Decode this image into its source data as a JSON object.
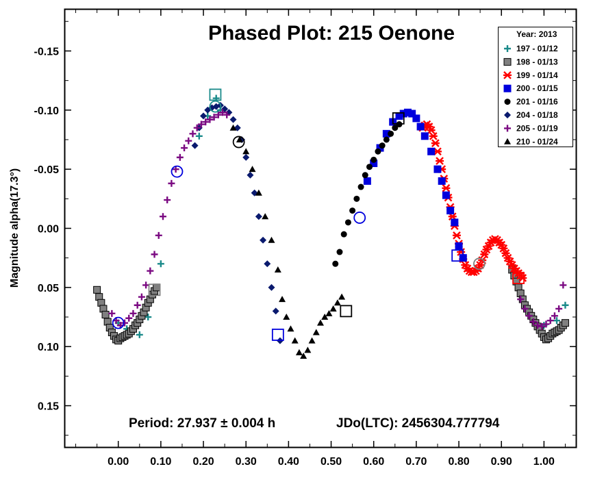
{
  "chart_data": {
    "type": "scatter",
    "title": "Phased Plot: 215 Oenone",
    "ylabel": "Magnitude alpha(17.3°)",
    "xlabel": "",
    "xlim": [
      -0.125,
      1.075
    ],
    "ylim": [
      -0.185,
      0.185
    ],
    "y_inverted": true,
    "grid": false,
    "legend_placement": "top-right",
    "legend_title": "Year: 2013",
    "period_text": "Period: 27.937 ± 0.004 h",
    "epoch_text": "JDo(LTC): 2456304.777794",
    "x_ticks": [
      0.0,
      0.1,
      0.2,
      0.3,
      0.4,
      0.5,
      0.6,
      0.7,
      0.8,
      0.9,
      1.0
    ],
    "x_tick_labels": [
      "0.00",
      "0.10",
      "0.20",
      "0.30",
      "0.40",
      "0.50",
      "0.60",
      "0.70",
      "0.80",
      "0.90",
      "1.00"
    ],
    "y_ticks": [
      -0.15,
      -0.1,
      -0.05,
      0.0,
      0.05,
      0.1,
      0.15
    ],
    "y_tick_labels": [
      "-0.15",
      "-0.10",
      "-0.05",
      "0.00",
      "0.05",
      "0.10",
      "0.15"
    ],
    "series": [
      {
        "name": "197 - 01/12",
        "color": "#1a8a8a",
        "marker": "plus",
        "x": [
          0.0,
          0.02,
          0.05,
          0.07,
          0.09,
          0.1,
          0.19,
          0.21,
          0.23,
          0.24,
          0.97,
          1.0,
          1.03,
          1.05
        ],
        "y": [
          0.08,
          0.085,
          0.09,
          0.075,
          0.05,
          0.03,
          -0.078,
          -0.095,
          -0.11,
          -0.1,
          0.075,
          0.082,
          0.078,
          0.065
        ]
      },
      {
        "name": "198 - 01/13",
        "color": "#808080",
        "marker": "square",
        "x": [
          -0.05,
          -0.045,
          -0.04,
          -0.035,
          -0.03,
          -0.025,
          -0.02,
          -0.015,
          -0.01,
          -0.005,
          0.0,
          0.005,
          0.01,
          0.015,
          0.02,
          0.025,
          0.03,
          0.035,
          0.04,
          0.045,
          0.05,
          0.055,
          0.06,
          0.065,
          0.07,
          0.075,
          0.08,
          0.085,
          0.09,
          0.925,
          0.93,
          0.935,
          0.94,
          0.945,
          0.95,
          0.955,
          0.96,
          0.965,
          0.97,
          0.975,
          0.98,
          0.985,
          0.99,
          0.995,
          1.0,
          1.005,
          1.01,
          1.015,
          1.02,
          1.025,
          1.03,
          1.035,
          1.04,
          1.045,
          1.05
        ],
        "y": [
          0.052,
          0.058,
          0.063,
          0.068,
          0.073,
          0.079,
          0.084,
          0.088,
          0.091,
          0.094,
          0.095,
          0.093,
          0.092,
          0.091,
          0.09,
          0.089,
          0.087,
          0.085,
          0.082,
          0.08,
          0.077,
          0.074,
          0.071,
          0.067,
          0.063,
          0.06,
          0.056,
          0.053,
          0.05,
          0.035,
          0.04,
          0.045,
          0.05,
          0.055,
          0.06,
          0.065,
          0.068,
          0.071,
          0.074,
          0.077,
          0.08,
          0.083,
          0.086,
          0.089,
          0.092,
          0.094,
          0.093,
          0.091,
          0.089,
          0.088,
          0.087,
          0.086,
          0.084,
          0.082,
          0.08
        ]
      },
      {
        "name": "199 - 01/14",
        "color": "#ff0000",
        "marker": "cross",
        "x": [
          0.715,
          0.72,
          0.725,
          0.73,
          0.735,
          0.74,
          0.745,
          0.75,
          0.755,
          0.76,
          0.765,
          0.77,
          0.775,
          0.78,
          0.785,
          0.79,
          0.795,
          0.8,
          0.805,
          0.81,
          0.815,
          0.82,
          0.825,
          0.83,
          0.835,
          0.84,
          0.845,
          0.85,
          0.855,
          0.86,
          0.865,
          0.87,
          0.875,
          0.88,
          0.885,
          0.89,
          0.895,
          0.9,
          0.905,
          0.91,
          0.915,
          0.92,
          0.925,
          0.93,
          0.935,
          0.94,
          0.945,
          0.95
        ],
        "y": [
          -0.085,
          -0.087,
          -0.088,
          -0.086,
          -0.083,
          -0.078,
          -0.072,
          -0.065,
          -0.057,
          -0.05,
          -0.042,
          -0.034,
          -0.026,
          -0.018,
          -0.01,
          -0.002,
          0.006,
          0.013,
          0.02,
          0.026,
          0.031,
          0.034,
          0.036,
          0.037,
          0.037,
          0.036,
          0.034,
          0.031,
          0.027,
          0.022,
          0.018,
          0.015,
          0.012,
          0.01,
          0.009,
          0.01,
          0.012,
          0.014,
          0.017,
          0.021,
          0.025,
          0.028,
          0.031,
          0.034,
          0.036,
          0.038,
          0.04,
          0.042
        ]
      },
      {
        "name": "200 - 01/15",
        "color": "#0000dd",
        "marker": "square",
        "x": [
          0.585,
          0.6,
          0.615,
          0.63,
          0.645,
          0.66,
          0.67,
          0.68,
          0.69,
          0.7,
          0.71,
          0.72,
          0.735,
          0.75,
          0.76,
          0.77,
          0.78,
          0.79,
          0.8,
          0.81
        ],
        "y": [
          -0.04,
          -0.055,
          -0.068,
          -0.08,
          -0.09,
          -0.095,
          -0.097,
          -0.098,
          -0.097,
          -0.093,
          -0.086,
          -0.078,
          -0.065,
          -0.05,
          -0.04,
          -0.028,
          -0.015,
          -0.005,
          0.015,
          0.025
        ]
      },
      {
        "name": "201 - 01/16",
        "color": "#000000",
        "marker": "circle",
        "x": [
          0.51,
          0.52,
          0.53,
          0.54,
          0.55,
          0.56,
          0.57,
          0.58,
          0.59,
          0.6,
          0.61,
          0.62,
          0.63,
          0.64,
          0.65,
          0.66
        ],
        "y": [
          0.03,
          0.02,
          0.005,
          -0.005,
          -0.015,
          -0.025,
          -0.035,
          -0.045,
          -0.052,
          -0.058,
          -0.065,
          -0.07,
          -0.075,
          -0.08,
          -0.085,
          -0.088
        ]
      },
      {
        "name": "204 - 01/18",
        "color": "#0a1a6e",
        "marker": "diamond",
        "x": [
          0.18,
          0.19,
          0.2,
          0.21,
          0.22,
          0.23,
          0.24,
          0.25,
          0.26,
          0.27,
          0.28,
          0.29,
          0.3,
          0.31,
          0.32,
          0.33,
          0.34,
          0.35,
          0.36,
          0.37,
          0.38
        ],
        "y": [
          -0.07,
          -0.085,
          -0.095,
          -0.1,
          -0.102,
          -0.103,
          -0.104,
          -0.101,
          -0.098,
          -0.092,
          -0.085,
          -0.075,
          -0.06,
          -0.045,
          -0.03,
          -0.01,
          0.01,
          0.03,
          0.05,
          0.07,
          0.095
        ]
      },
      {
        "name": "205 - 01/19",
        "color": "#7b0a82",
        "marker": "plus",
        "x": [
          -0.015,
          -0.005,
          0.005,
          0.015,
          0.025,
          0.035,
          0.045,
          0.055,
          0.065,
          0.075,
          0.085,
          0.095,
          0.105,
          0.115,
          0.125,
          0.135,
          0.145,
          0.155,
          0.165,
          0.175,
          0.185,
          0.195,
          0.205,
          0.215,
          0.225,
          0.235,
          0.245,
          0.255,
          0.945,
          0.955,
          0.965,
          0.975,
          0.985,
          0.995,
          1.005,
          1.015,
          1.025,
          1.035,
          1.045
        ],
        "y": [
          0.072,
          0.078,
          0.082,
          0.08,
          0.076,
          0.072,
          0.065,
          0.058,
          0.048,
          0.036,
          0.022,
          0.006,
          -0.01,
          -0.024,
          -0.038,
          -0.05,
          -0.06,
          -0.068,
          -0.074,
          -0.08,
          -0.085,
          -0.088,
          -0.09,
          -0.092,
          -0.094,
          -0.096,
          -0.098,
          -0.096,
          0.06,
          0.068,
          0.074,
          0.079,
          0.082,
          0.083,
          0.081,
          0.078,
          0.074,
          0.068,
          0.048
        ]
      },
      {
        "name": "210 - 01/24",
        "color": "#000000",
        "marker": "triangle",
        "x": [
          0.27,
          0.285,
          0.3,
          0.315,
          0.33,
          0.345,
          0.36,
          0.375,
          0.385,
          0.395,
          0.405,
          0.415,
          0.425,
          0.435,
          0.445,
          0.455,
          0.465,
          0.475,
          0.485,
          0.495,
          0.505,
          0.515,
          0.525
        ],
        "y": [
          -0.085,
          -0.075,
          -0.065,
          -0.05,
          -0.03,
          -0.01,
          0.01,
          0.035,
          0.06,
          0.075,
          0.085,
          0.095,
          0.105,
          0.108,
          0.103,
          0.095,
          0.088,
          0.08,
          0.075,
          0.072,
          0.068,
          0.063,
          0.058
        ]
      }
    ],
    "open_markers": [
      {
        "shape": "square",
        "color": "#1a8a8a",
        "x": 0.228,
        "y": -0.113
      },
      {
        "shape": "circle",
        "color": "#1a8a8a",
        "x": 0.228,
        "y": -0.103
      },
      {
        "shape": "square",
        "color": "#808080",
        "x": 0.085,
        "y": 0.052
      },
      {
        "shape": "circle",
        "color": "#0000dd",
        "x": 0.138,
        "y": -0.048
      },
      {
        "shape": "circle",
        "color": "#0000dd",
        "x": 0.0,
        "y": 0.08
      },
      {
        "shape": "circle",
        "color": "#000000",
        "x": 0.283,
        "y": -0.073
      },
      {
        "shape": "square",
        "color": "#0000dd",
        "x": 0.375,
        "y": 0.09
      },
      {
        "shape": "square",
        "color": "#000000",
        "x": 0.535,
        "y": 0.07
      },
      {
        "shape": "circle",
        "color": "#0000dd",
        "x": 0.567,
        "y": -0.009
      },
      {
        "shape": "square",
        "color": "#000000",
        "x": 0.658,
        "y": -0.093
      },
      {
        "shape": "square",
        "color": "#0000dd",
        "x": 0.797,
        "y": 0.023
      },
      {
        "shape": "circle",
        "color": "#808080",
        "x": 0.848,
        "y": 0.03
      },
      {
        "shape": "square",
        "color": "#ff0000",
        "x": 0.94,
        "y": 0.042
      }
    ]
  }
}
